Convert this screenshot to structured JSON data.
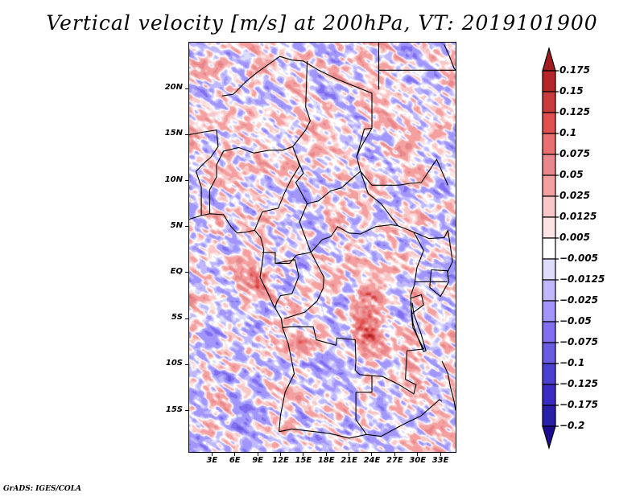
{
  "title": "Vertical velocity [m/s] at 200hPa, VT: 2019101900",
  "credit": "GrADS: IGES/COLA",
  "chart_data": {
    "type": "heatmap",
    "title": "Vertical velocity [m/s] at 200hPa, VT: 2019101900",
    "variable": "Vertical velocity",
    "units": "m/s",
    "level": "200hPa",
    "valid_time": "2019101900",
    "xlabel": "",
    "ylabel": "",
    "lon_range": [
      0,
      35
    ],
    "lat_range": [
      -19.5,
      25
    ],
    "x_ticks": [
      {
        "value": 3,
        "label": "3E"
      },
      {
        "value": 6,
        "label": "6E"
      },
      {
        "value": 9,
        "label": "9E"
      },
      {
        "value": 12,
        "label": "12E"
      },
      {
        "value": 15,
        "label": "15E"
      },
      {
        "value": 18,
        "label": "18E"
      },
      {
        "value": 21,
        "label": "21E"
      },
      {
        "value": 24,
        "label": "24E"
      },
      {
        "value": 27,
        "label": "27E"
      },
      {
        "value": 30,
        "label": "30E"
      },
      {
        "value": 33,
        "label": "33E"
      }
    ],
    "y_ticks": [
      {
        "value": 20,
        "label": "20N"
      },
      {
        "value": 15,
        "label": "15N"
      },
      {
        "value": 10,
        "label": "10N"
      },
      {
        "value": 5,
        "label": "5N"
      },
      {
        "value": 0,
        "label": "EQ"
      },
      {
        "value": -5,
        "label": "5S"
      },
      {
        "value": -10,
        "label": "10S"
      },
      {
        "value": -15,
        "label": "15S"
      }
    ],
    "colorbar": {
      "labels": [
        "0.175",
        "0.15",
        "0.125",
        "0.1",
        "0.075",
        "0.05",
        "0.025",
        "0.0125",
        "0.005",
        "-0.005",
        "-0.0125",
        "-0.025",
        "-0.05",
        "-0.075",
        "-0.1",
        "-0.125",
        "-0.175",
        "-0.2"
      ],
      "colors": [
        "#a01c20",
        "#b4262a",
        "#c83c3e",
        "#e05050",
        "#e87070",
        "#e8888c",
        "#f4a0a0",
        "#f8c8c8",
        "#fce4e4",
        "#ffffff",
        "#dcdcfc",
        "#c0b8fc",
        "#a096fc",
        "#8070f0",
        "#6a5ce0",
        "#4c40d0",
        "#3a2cc0",
        "#2a20a8",
        "#1c0c90"
      ],
      "orientation": "vertical",
      "placement": "right",
      "extend": "both"
    },
    "notable_features": [
      "strong ascent (red) over Gabon / Congo coast near 0-2S, 9E",
      "strong ascent (red) cluster over central DR Congo near 2-6S, 23-25E",
      "descent (blue) bands over the South Atlantic west of Angola"
    ]
  }
}
